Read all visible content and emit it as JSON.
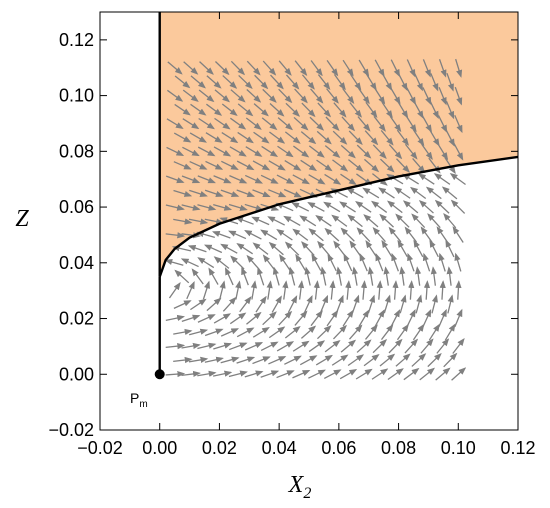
{
  "chart_data": {
    "type": "stream-plot",
    "xlabel": {
      "main": "X",
      "sub": "2"
    },
    "ylabel": "Z",
    "xlim": [
      -0.02,
      0.12
    ],
    "ylim": [
      -0.02,
      0.13
    ],
    "xticks": [
      "−0.02",
      "0.00",
      "0.02",
      "0.04",
      "0.06",
      "0.08",
      "0.10",
      "0.12"
    ],
    "xtick_values": [
      -0.02,
      0,
      0.02,
      0.04,
      0.06,
      0.08,
      0.1,
      0.12
    ],
    "yticks": [
      "−0.02",
      "0.00",
      "0.02",
      "0.04",
      "0.06",
      "0.08",
      "0.10",
      "0.12"
    ],
    "ytick_values": [
      -0.02,
      0,
      0.02,
      0.04,
      0.06,
      0.08,
      0.1,
      0.12
    ],
    "grid": false,
    "shaded_region": {
      "color": "#fbc99c",
      "description": "region above separatrix curve"
    },
    "separatrix": {
      "color": "#000000",
      "points": [
        [
          0,
          0.13
        ],
        [
          0,
          0.035
        ],
        [
          0.002,
          0.041
        ],
        [
          0.005,
          0.045
        ],
        [
          0.01,
          0.049
        ],
        [
          0.02,
          0.054
        ],
        [
          0.04,
          0.061
        ],
        [
          0.06,
          0.066
        ],
        [
          0.08,
          0.071
        ],
        [
          0.1,
          0.075
        ],
        [
          0.12,
          0.078
        ]
      ]
    },
    "vertical_segment": {
      "color": "#000000",
      "from": [
        0,
        0
      ],
      "to": [
        0,
        0.035
      ]
    },
    "fixed_point": {
      "label": "P",
      "label_sub": "m",
      "x": 0,
      "y": 0
    },
    "field_region": {
      "x": [
        0.005,
        0.1
      ],
      "y": [
        0.0,
        0.11
      ]
    },
    "arrow_color": "#808080"
  }
}
